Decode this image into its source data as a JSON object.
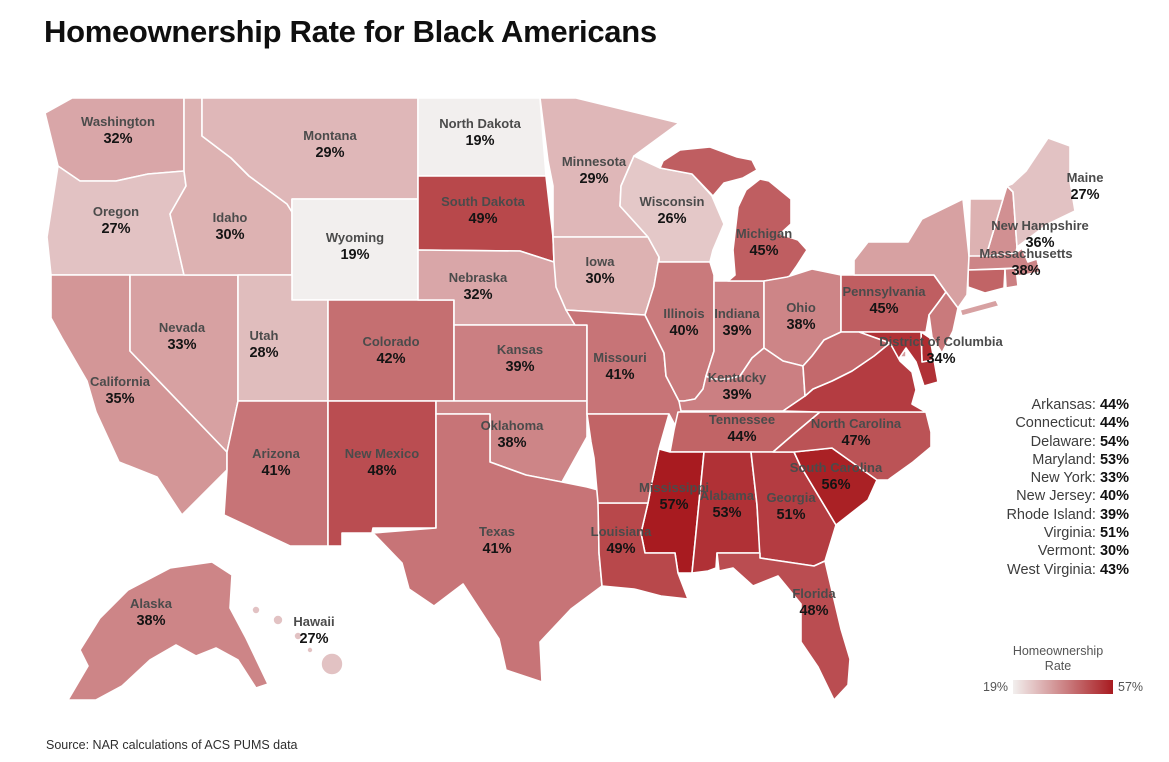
{
  "title": "Homeownership Rate for Black Americans",
  "source_note": "Source: NAR calculations of ACS PUMS data",
  "legend": {
    "title_line1": "Homeownership",
    "title_line2": "Rate",
    "min_label": "19%",
    "max_label": "57%",
    "min_color": "#f2efee",
    "max_color": "#a81b20"
  },
  "chart_data": {
    "type": "choropleth_map",
    "title": "Homeownership Rate for Black Americans",
    "unit": "%",
    "scale": {
      "min": 19,
      "max": 57,
      "min_color": "#f2efee",
      "max_color": "#a81b20"
    },
    "states": [
      {
        "name": "Washington",
        "value": 32,
        "map_label": true
      },
      {
        "name": "Oregon",
        "value": 27,
        "map_label": true
      },
      {
        "name": "California",
        "value": 35,
        "map_label": true
      },
      {
        "name": "Nevada",
        "value": 33,
        "map_label": true
      },
      {
        "name": "Idaho",
        "value": 30,
        "map_label": true
      },
      {
        "name": "Montana",
        "value": 29,
        "map_label": true
      },
      {
        "name": "Wyoming",
        "value": 19,
        "map_label": true
      },
      {
        "name": "Utah",
        "value": 28,
        "map_label": true
      },
      {
        "name": "Colorado",
        "value": 42,
        "map_label": true
      },
      {
        "name": "Arizona",
        "value": 41,
        "map_label": true
      },
      {
        "name": "New Mexico",
        "value": 48,
        "map_label": true
      },
      {
        "name": "North Dakota",
        "value": 19,
        "map_label": true
      },
      {
        "name": "South Dakota",
        "value": 49,
        "map_label": true
      },
      {
        "name": "Nebraska",
        "value": 32,
        "map_label": true
      },
      {
        "name": "Kansas",
        "value": 39,
        "map_label": true
      },
      {
        "name": "Oklahoma",
        "value": 38,
        "map_label": true
      },
      {
        "name": "Texas",
        "value": 41,
        "map_label": true
      },
      {
        "name": "Minnesota",
        "value": 29,
        "map_label": true
      },
      {
        "name": "Iowa",
        "value": 30,
        "map_label": true
      },
      {
        "name": "Missouri",
        "value": 41,
        "map_label": true
      },
      {
        "name": "Wisconsin",
        "value": 26,
        "map_label": true
      },
      {
        "name": "Illinois",
        "value": 40,
        "map_label": true
      },
      {
        "name": "Indiana",
        "value": 39,
        "map_label": true
      },
      {
        "name": "Michigan",
        "value": 45,
        "map_label": true
      },
      {
        "name": "Ohio",
        "value": 38,
        "map_label": true
      },
      {
        "name": "Kentucky",
        "value": 39,
        "map_label": true
      },
      {
        "name": "Tennessee",
        "value": 44,
        "map_label": true
      },
      {
        "name": "Mississippi",
        "value": 57,
        "map_label": true
      },
      {
        "name": "Alabama",
        "value": 53,
        "map_label": true
      },
      {
        "name": "Georgia",
        "value": 51,
        "map_label": true
      },
      {
        "name": "Louisiana",
        "value": 49,
        "map_label": true
      },
      {
        "name": "Florida",
        "value": 48,
        "map_label": true
      },
      {
        "name": "South Carolina",
        "value": 56,
        "map_label": true
      },
      {
        "name": "North Carolina",
        "value": 47,
        "map_label": true
      },
      {
        "name": "Pennsylvania",
        "value": 45,
        "map_label": true
      },
      {
        "name": "District of Columbia",
        "value": 34,
        "map_label": true
      },
      {
        "name": "Massachusetts",
        "value": 38,
        "map_label": true
      },
      {
        "name": "New Hampshire",
        "value": 36,
        "map_label": true
      },
      {
        "name": "Maine",
        "value": 27,
        "map_label": true
      },
      {
        "name": "Alaska",
        "value": 38,
        "map_label": true
      },
      {
        "name": "Hawaii",
        "value": 27,
        "map_label": true
      },
      {
        "name": "Arkansas",
        "value": 44,
        "map_label": false
      },
      {
        "name": "Connecticut",
        "value": 44,
        "map_label": false
      },
      {
        "name": "Delaware",
        "value": 54,
        "map_label": false
      },
      {
        "name": "Maryland",
        "value": 53,
        "map_label": false
      },
      {
        "name": "New York",
        "value": 33,
        "map_label": false
      },
      {
        "name": "New Jersey",
        "value": 40,
        "map_label": false
      },
      {
        "name": "Rhode Island",
        "value": 39,
        "map_label": false
      },
      {
        "name": "Virginia",
        "value": 51,
        "map_label": false
      },
      {
        "name": "Vermont",
        "value": 30,
        "map_label": false
      },
      {
        "name": "West Virginia",
        "value": 43,
        "map_label": false
      }
    ]
  }
}
